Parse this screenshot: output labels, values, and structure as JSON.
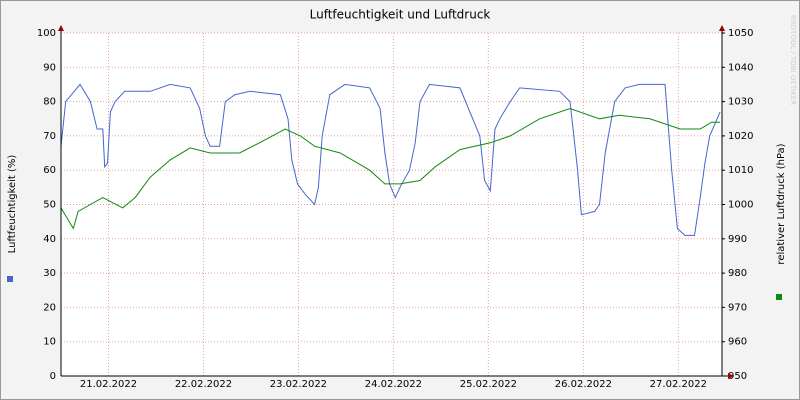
{
  "chart_data": {
    "type": "line",
    "title": "Luftfeuchtigkeit und Luftdruck",
    "ylabel": "Luftfeuchtigkeit (%)",
    "y2label": "relativer Luftdruck (hPa)",
    "watermark": "RRDTOOL / TOBI OETIKER",
    "xlim": [
      0,
      6.96
    ],
    "xticks": [
      {
        "value": 0.5,
        "label": "21.02.2022"
      },
      {
        "value": 1.5,
        "label": "22.02.2022"
      },
      {
        "value": 2.5,
        "label": "23.02.2022"
      },
      {
        "value": 3.5,
        "label": "24.02.2022"
      },
      {
        "value": 4.5,
        "label": "25.02.2022"
      },
      {
        "value": 5.5,
        "label": "26.02.2022"
      },
      {
        "value": 6.5,
        "label": "27.02.2022"
      }
    ],
    "ylim": [
      0,
      100
    ],
    "yticks": [
      0,
      10,
      20,
      30,
      40,
      50,
      60,
      70,
      80,
      90,
      100
    ],
    "y2lim": [
      950,
      1050
    ],
    "y2ticks": [
      950,
      960,
      970,
      980,
      990,
      1000,
      1010,
      1020,
      1030,
      1040,
      1050
    ],
    "grid": true,
    "series": [
      {
        "color": "#4466cc",
        "axis": "y",
        "x": [
          0.0,
          0.05,
          0.2,
          0.31,
          0.38,
          0.44,
          0.46,
          0.49,
          0.52,
          0.57,
          0.67,
          0.94,
          1.15,
          1.36,
          1.46,
          1.52,
          1.57,
          1.67,
          1.73,
          1.83,
          1.99,
          2.31,
          2.39,
          2.43,
          2.49,
          2.57,
          2.67,
          2.71,
          2.75,
          2.83,
          2.99,
          3.25,
          3.36,
          3.41,
          3.46,
          3.52,
          3.57,
          3.67,
          3.73,
          3.78,
          3.88,
          4.2,
          4.41,
          4.46,
          4.52,
          4.57,
          4.62,
          4.73,
          4.83,
          5.25,
          5.36,
          5.44,
          5.48,
          5.62,
          5.67,
          5.73,
          5.83,
          5.94,
          6.09,
          6.36,
          6.43,
          6.49,
          6.57,
          6.67,
          6.73,
          6.78,
          6.83,
          6.94
        ],
        "values": [
          67,
          80,
          85,
          80,
          72,
          72,
          61,
          62,
          77,
          80,
          83,
          83,
          85,
          84,
          78,
          70,
          67,
          67,
          80,
          82,
          83,
          82,
          75,
          63,
          56,
          53,
          50,
          55,
          70,
          82,
          85,
          84,
          78,
          65,
          56,
          52,
          55,
          60,
          68,
          80,
          85,
          84,
          70,
          57,
          54,
          72,
          75,
          80,
          84,
          83,
          80,
          60,
          47,
          48,
          50,
          65,
          80,
          84,
          85,
          85,
          60,
          43,
          41,
          41,
          52,
          62,
          70,
          77
        ]
      },
      {
        "color": "#118811",
        "axis": "y2",
        "x": [
          0,
          0.13,
          0.18,
          0.31,
          0.44,
          0.65,
          0.78,
          0.94,
          1.15,
          1.36,
          1.57,
          1.88,
          2.09,
          2.36,
          2.52,
          2.67,
          2.94,
          3.25,
          3.41,
          3.57,
          3.78,
          3.94,
          4.2,
          4.52,
          4.73,
          5.04,
          5.36,
          5.67,
          5.88,
          6.2,
          6.52,
          6.73,
          6.85,
          6.94
        ],
        "values": [
          999,
          993,
          998,
          1000,
          1002,
          999,
          1002,
          1008,
          1013,
          1016.5,
          1015,
          1015,
          1018,
          1022,
          1020,
          1017,
          1015,
          1010,
          1006,
          1006,
          1007,
          1011,
          1016,
          1018,
          1020,
          1025,
          1028,
          1025,
          1026,
          1025,
          1022,
          1022,
          1024,
          1024
        ]
      }
    ]
  }
}
